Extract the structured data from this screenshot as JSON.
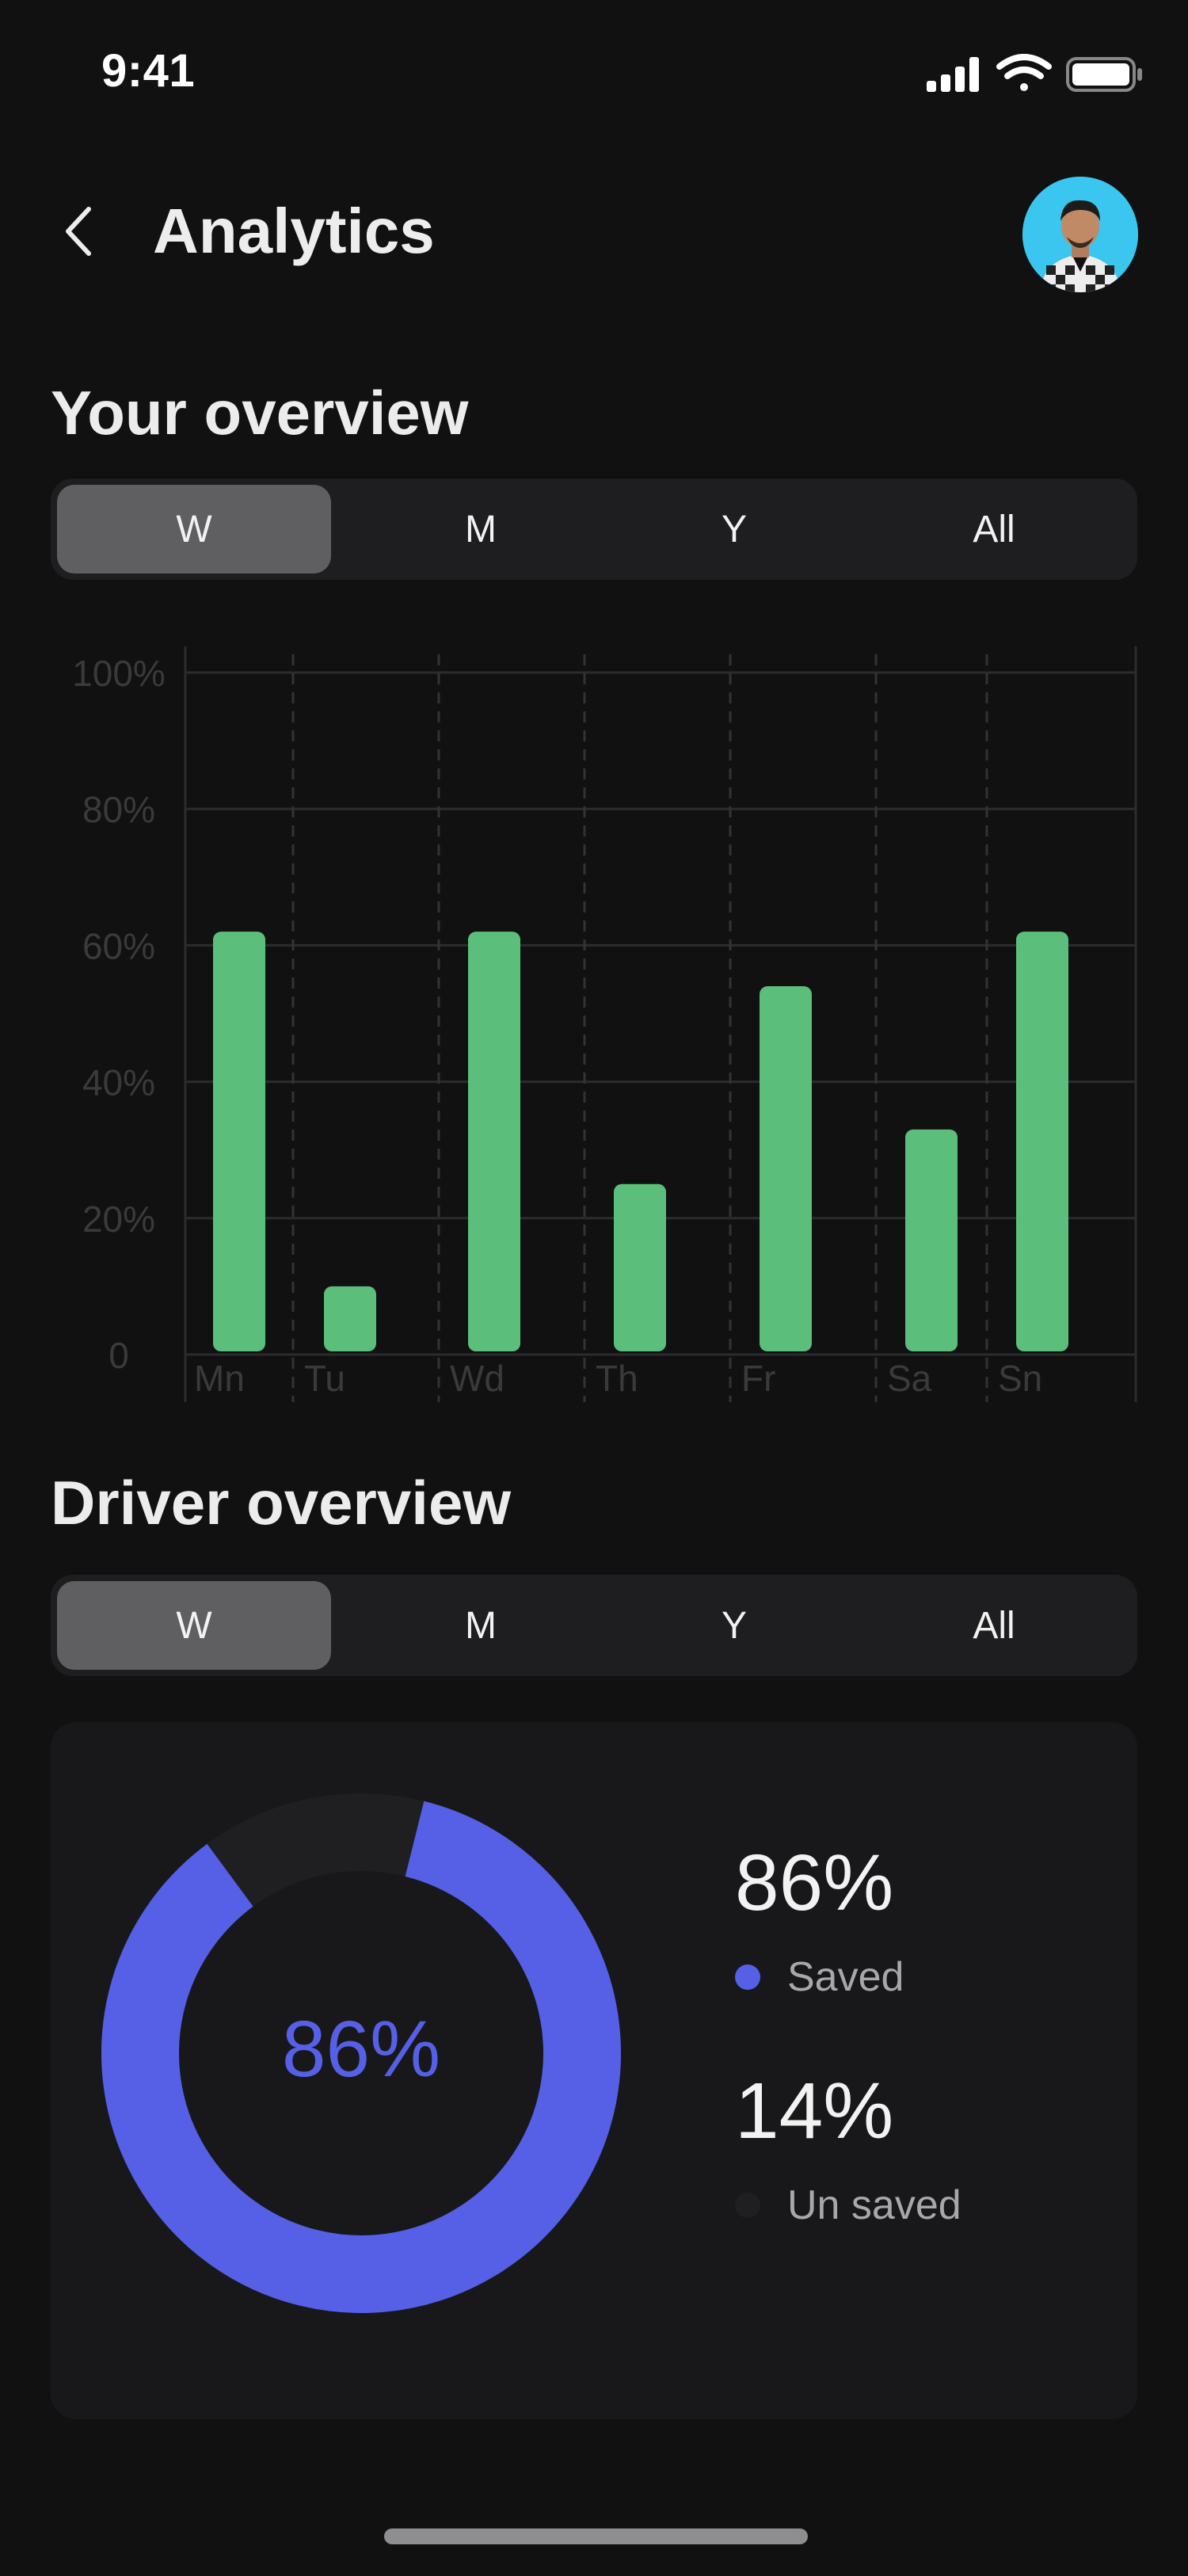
{
  "status_bar": {
    "time": "9:41"
  },
  "header": {
    "title": "Analytics"
  },
  "your_overview": {
    "title": "Your overview",
    "tabs": [
      "W",
      "M",
      "Y",
      "All"
    ],
    "active_tab": "W"
  },
  "chart_data": {
    "type": "bar",
    "categories": [
      "Mn",
      "Tu",
      "Wd",
      "Th",
      "Fr",
      "Sa",
      "Sn"
    ],
    "values": [
      62,
      10,
      62,
      25,
      54,
      33,
      62
    ],
    "yticks": [
      "0",
      "20%",
      "40%",
      "60%",
      "80%",
      "100%"
    ],
    "ylim": [
      0,
      100
    ],
    "grid": true,
    "bar_color": "#5BBE7B"
  },
  "driver_overview": {
    "title": "Driver overview",
    "tabs": [
      "W",
      "M",
      "Y",
      "All"
    ],
    "active_tab": "W",
    "center_label": "86%",
    "saved": {
      "value": "86%",
      "label": "Saved",
      "fraction": 0.86,
      "color": "#5560E6"
    },
    "unsaved": {
      "value": "14%",
      "label": "Un saved",
      "fraction": 0.14,
      "color": "#1F1F22"
    }
  }
}
